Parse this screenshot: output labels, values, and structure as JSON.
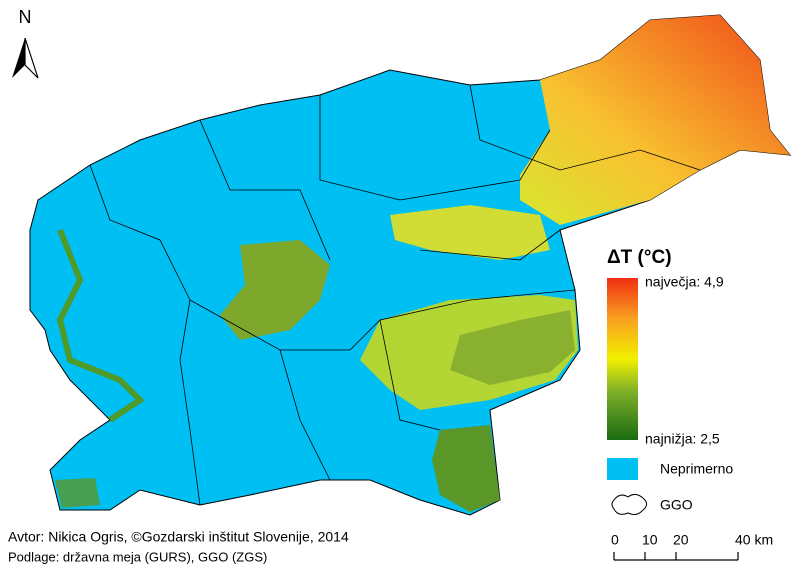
{
  "north": "N",
  "legend": {
    "title": "ΔT (°C)",
    "max": "največja: 4,9",
    "min": "najnižja: 2,5",
    "unsuitable": "Neprimerno",
    "ggo": "GGO"
  },
  "scale": {
    "ticks": [
      0,
      10,
      20,
      {
        "value": 40,
        "label": "40 km"
      }
    ]
  },
  "credits": {
    "author": "Avtor: Nikica Ogris, ©Gozdarski inštitut Slovenije, 2014",
    "sources": "Podlage: državna meja (GURS), GGO (ZGS)"
  }
}
